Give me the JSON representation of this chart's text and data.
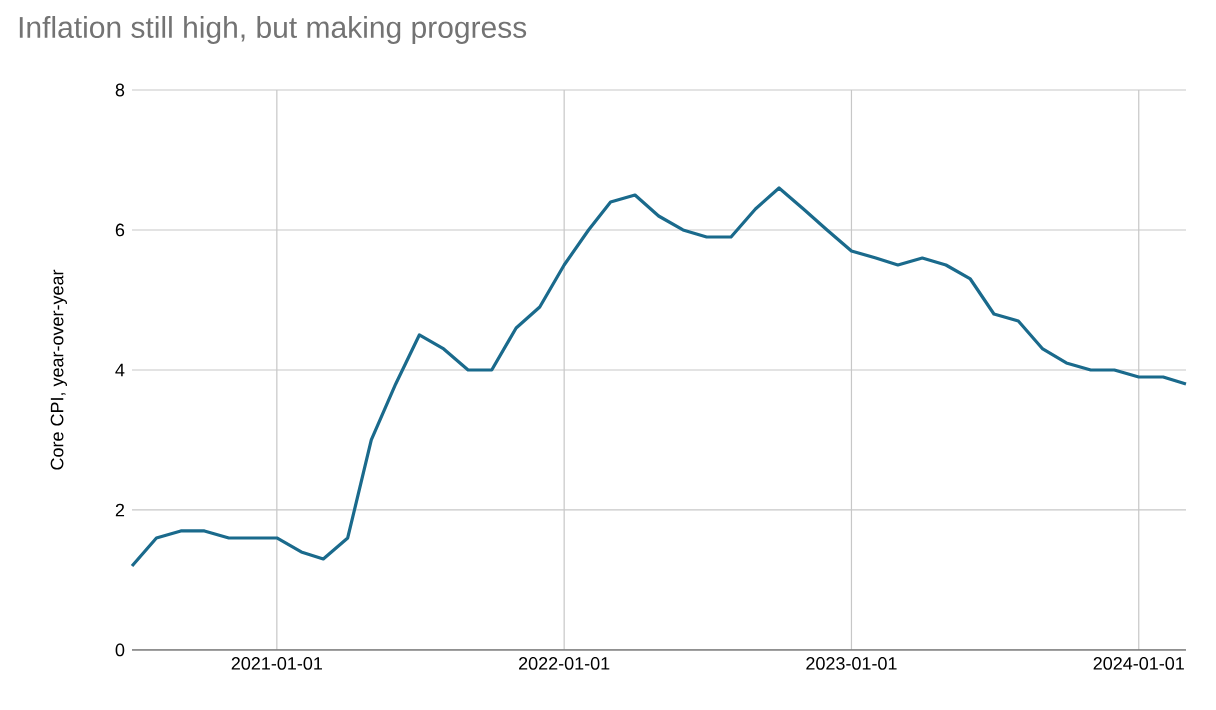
{
  "chart_data": {
    "type": "line",
    "title": "Inflation still high, but making progress",
    "ylabel": "Core CPI, year-over-year",
    "x": [
      "2020-07",
      "2020-08",
      "2020-09",
      "2020-10",
      "2020-11",
      "2020-12",
      "2021-01",
      "2021-02",
      "2021-03",
      "2021-04",
      "2021-05",
      "2021-06",
      "2021-07",
      "2021-08",
      "2021-09",
      "2021-10",
      "2021-11",
      "2021-12",
      "2022-01",
      "2022-02",
      "2022-03",
      "2022-04",
      "2022-05",
      "2022-06",
      "2022-07",
      "2022-08",
      "2022-09",
      "2022-10",
      "2022-11",
      "2022-12",
      "2023-01",
      "2023-02",
      "2023-03",
      "2023-04",
      "2023-05",
      "2023-06",
      "2023-07",
      "2023-08",
      "2023-09",
      "2023-10",
      "2023-11",
      "2023-12",
      "2024-01",
      "2024-02",
      "2024-03"
    ],
    "series": [
      {
        "color": "#1a6a8c",
        "values": [
          1.2,
          1.6,
          1.7,
          1.7,
          1.6,
          1.6,
          1.6,
          1.4,
          1.3,
          1.6,
          3.0,
          3.8,
          4.5,
          4.3,
          4.0,
          4.0,
          4.6,
          4.9,
          5.5,
          6.0,
          6.4,
          6.5,
          6.2,
          6.0,
          5.9,
          5.9,
          6.3,
          6.6,
          6.3,
          6.0,
          5.7,
          5.6,
          5.5,
          5.6,
          5.5,
          5.3,
          4.8,
          4.7,
          4.3,
          4.1,
          4.0,
          4.0,
          3.9,
          3.9,
          3.8
        ]
      }
    ],
    "xlim": [
      "2020-07",
      "2024-03"
    ],
    "ylim": [
      0,
      8
    ],
    "xticks": [
      "2021-01-01",
      "2022-01-01",
      "2023-01-01",
      "2024-01-01"
    ],
    "yticks": [
      0,
      2,
      4,
      6,
      8
    ],
    "grid": true,
    "marker": "none"
  }
}
